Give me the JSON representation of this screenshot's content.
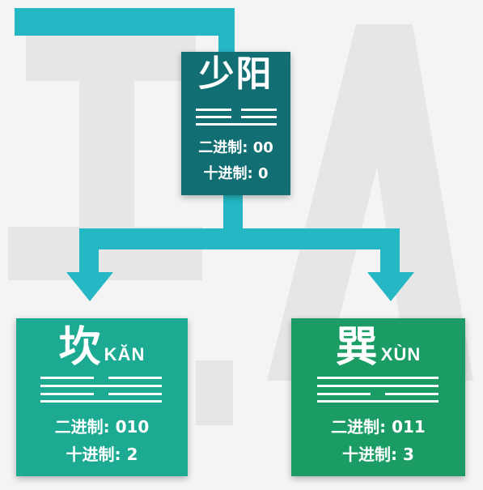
{
  "colors": {
    "background": "#f4f4f4",
    "watermark": "#e6e6e6",
    "connector": "#25b8c4",
    "top_card": "#116e73",
    "left_card": "#1daa93",
    "right_card": "#1b9c64"
  },
  "top": {
    "name": "少阳",
    "binary_label": "二进制: 00",
    "decimal_label": "十进制: 0",
    "lines": [
      "yin",
      "yin"
    ]
  },
  "left": {
    "name": "坎",
    "pinyin": "KĂN",
    "binary_label": "二进制: 010",
    "decimal_label": "十进制: 2",
    "lines": [
      "yin",
      "yang",
      "yin"
    ]
  },
  "right": {
    "name": "巽",
    "pinyin": "XÙN",
    "binary_label": "二进制: 011",
    "decimal_label": "十进制: 3",
    "lines": [
      "yang",
      "yang",
      "yin"
    ]
  }
}
